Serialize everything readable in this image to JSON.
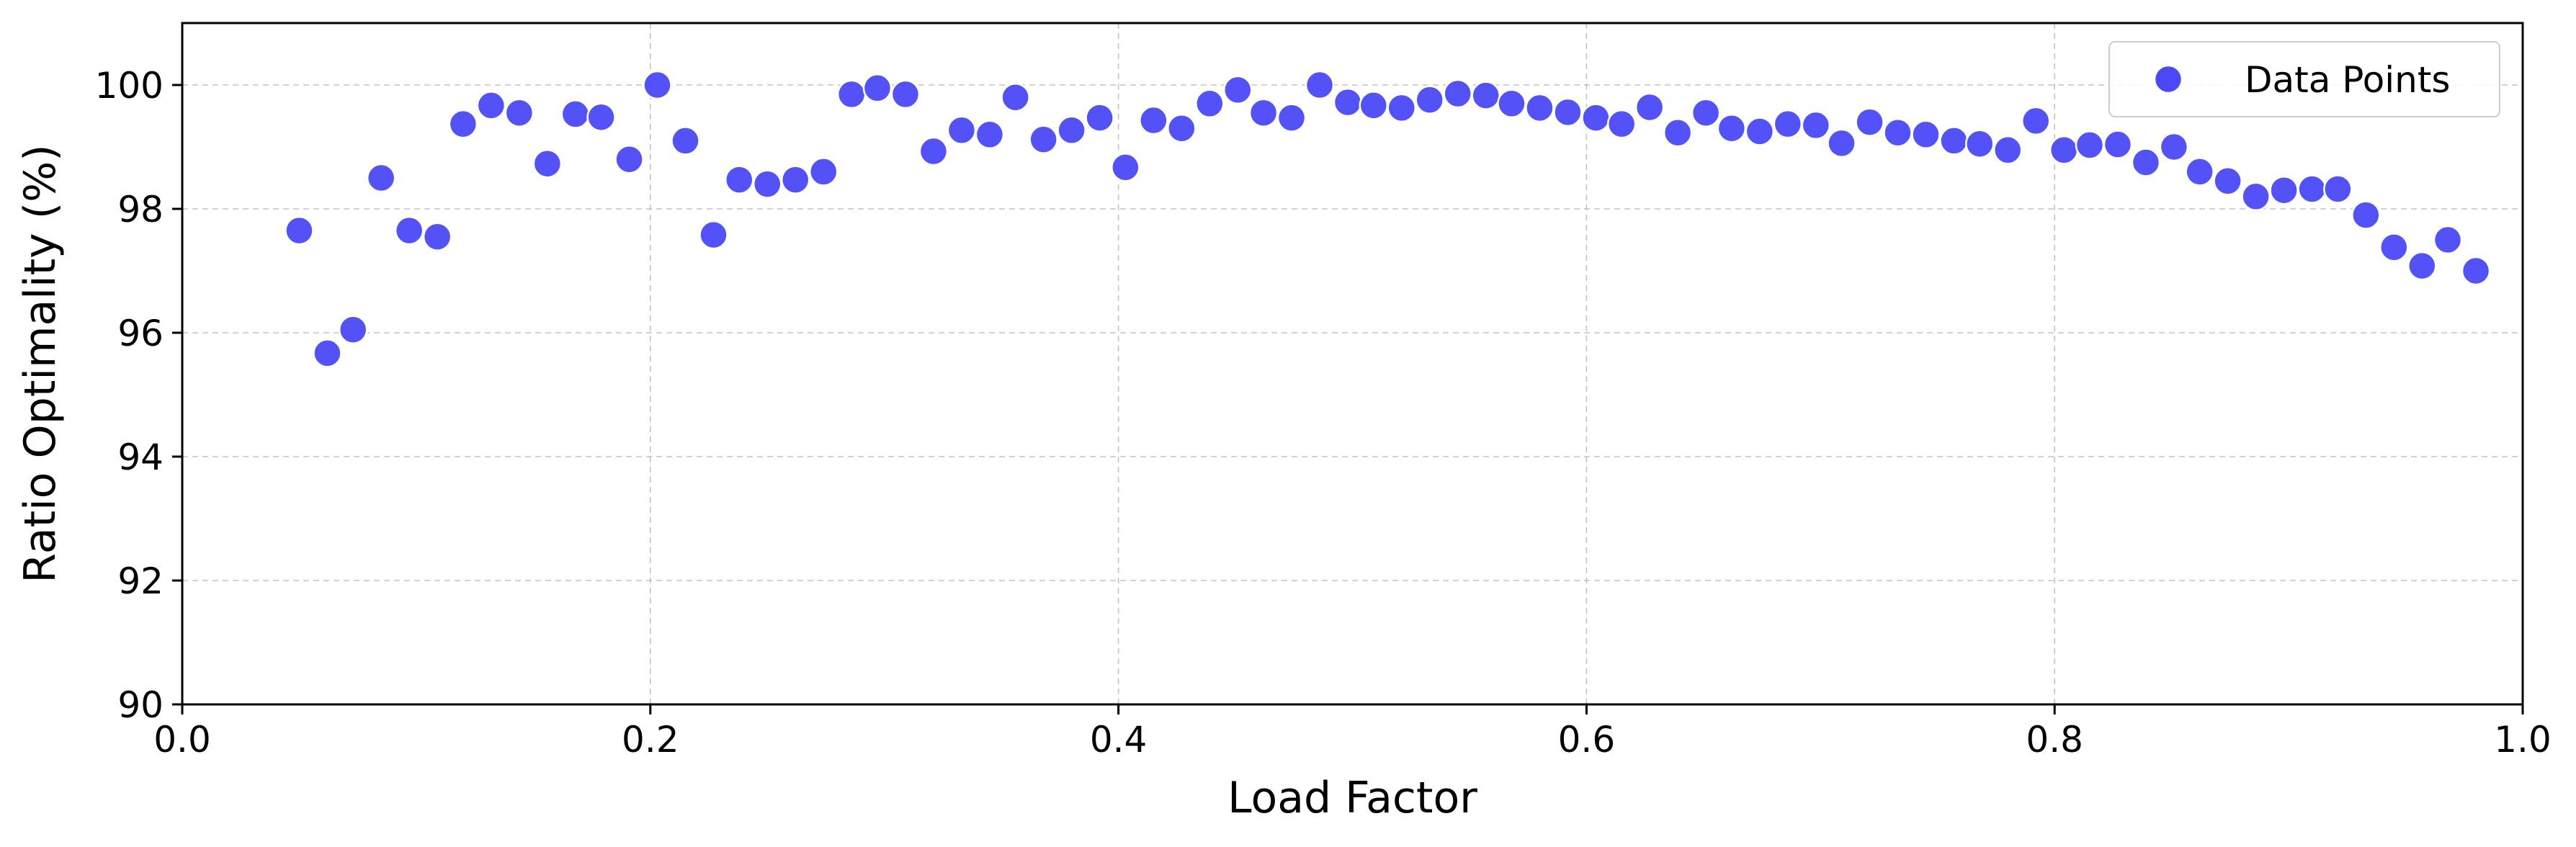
{
  "chart_data": {
    "type": "scatter",
    "title": "",
    "xlabel": "Load Factor",
    "ylabel": "Ratio Optimality (%)",
    "xlim": [
      0.0,
      1.0
    ],
    "ylim": [
      90,
      101
    ],
    "x_ticks": [
      0.0,
      0.2,
      0.4,
      0.6,
      0.8,
      1.0
    ],
    "x_tick_labels": [
      "0.0",
      "0.2",
      "0.4",
      "0.6",
      "0.8",
      "1.0"
    ],
    "y_ticks": [
      90,
      92,
      94,
      96,
      98,
      100
    ],
    "y_tick_labels": [
      "90",
      "92",
      "94",
      "96",
      "98",
      "100"
    ],
    "grid": true,
    "legend_position": "top-right",
    "series": [
      {
        "name": "Data Points",
        "color": "#4a49f5",
        "points": [
          [
            0.05,
            97.65
          ],
          [
            0.062,
            95.67
          ],
          [
            0.073,
            96.05
          ],
          [
            0.085,
            98.5
          ],
          [
            0.097,
            97.65
          ],
          [
            0.109,
            97.55
          ],
          [
            0.12,
            99.37
          ],
          [
            0.132,
            99.67
          ],
          [
            0.144,
            99.55
          ],
          [
            0.156,
            98.73
          ],
          [
            0.168,
            99.53
          ],
          [
            0.179,
            99.48
          ],
          [
            0.191,
            98.8
          ],
          [
            0.203,
            100.0
          ],
          [
            0.215,
            99.1
          ],
          [
            0.227,
            97.58
          ],
          [
            0.238,
            98.47
          ],
          [
            0.25,
            98.4
          ],
          [
            0.262,
            98.47
          ],
          [
            0.274,
            98.6
          ],
          [
            0.286,
            99.85
          ],
          [
            0.297,
            99.95
          ],
          [
            0.309,
            99.85
          ],
          [
            0.321,
            98.93
          ],
          [
            0.333,
            99.27
          ],
          [
            0.345,
            99.2
          ],
          [
            0.356,
            99.8
          ],
          [
            0.368,
            99.12
          ],
          [
            0.38,
            99.27
          ],
          [
            0.392,
            99.47
          ],
          [
            0.403,
            98.67
          ],
          [
            0.415,
            99.43
          ],
          [
            0.427,
            99.3
          ],
          [
            0.439,
            99.7
          ],
          [
            0.451,
            99.92
          ],
          [
            0.462,
            99.55
          ],
          [
            0.474,
            99.47
          ],
          [
            0.486,
            100.0
          ],
          [
            0.498,
            99.72
          ],
          [
            0.509,
            99.67
          ],
          [
            0.521,
            99.63
          ],
          [
            0.533,
            99.76
          ],
          [
            0.545,
            99.86
          ],
          [
            0.557,
            99.83
          ],
          [
            0.568,
            99.7
          ],
          [
            0.58,
            99.63
          ],
          [
            0.592,
            99.56
          ],
          [
            0.604,
            99.47
          ],
          [
            0.615,
            99.37
          ],
          [
            0.627,
            99.64
          ],
          [
            0.639,
            99.23
          ],
          [
            0.651,
            99.55
          ],
          [
            0.662,
            99.3
          ],
          [
            0.674,
            99.25
          ],
          [
            0.686,
            99.37
          ],
          [
            0.698,
            99.35
          ],
          [
            0.709,
            99.06
          ],
          [
            0.721,
            99.4
          ],
          [
            0.733,
            99.23
          ],
          [
            0.745,
            99.2
          ],
          [
            0.757,
            99.1
          ],
          [
            0.768,
            99.05
          ],
          [
            0.78,
            98.95
          ],
          [
            0.792,
            99.42
          ],
          [
            0.804,
            98.95
          ],
          [
            0.815,
            99.03
          ],
          [
            0.827,
            99.04
          ],
          [
            0.839,
            98.75
          ],
          [
            0.851,
            99.0
          ],
          [
            0.862,
            98.6
          ],
          [
            0.874,
            98.45
          ],
          [
            0.886,
            98.2
          ],
          [
            0.898,
            98.3
          ],
          [
            0.91,
            98.32
          ],
          [
            0.921,
            98.32
          ],
          [
            0.933,
            97.9
          ],
          [
            0.945,
            97.38
          ],
          [
            0.957,
            97.08
          ],
          [
            0.968,
            97.5
          ],
          [
            0.98,
            97.0
          ]
        ]
      }
    ]
  }
}
